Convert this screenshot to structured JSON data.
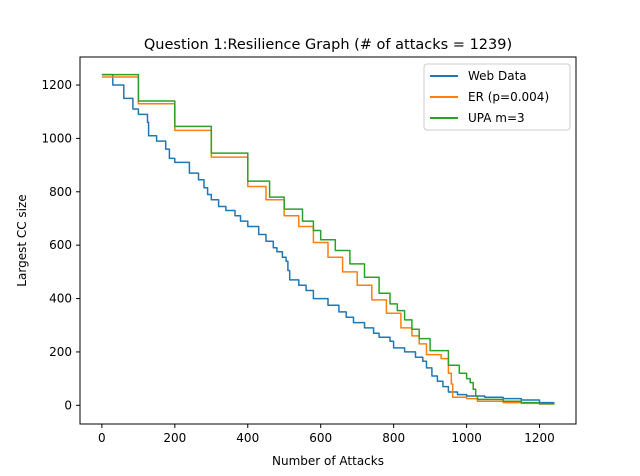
{
  "chart_data": {
    "type": "line",
    "title": "Question 1:Resilience Graph (# of attacks = 1239)",
    "xlabel": "Number of Attacks",
    "ylabel": "Largest CC size",
    "xlim": [
      -60,
      1300
    ],
    "ylim": [
      -70,
      1305
    ],
    "xticks": [
      0,
      200,
      400,
      600,
      800,
      1000,
      1200
    ],
    "yticks": [
      0,
      200,
      400,
      600,
      800,
      1000,
      1200
    ],
    "grid": false,
    "legend_position": "top-right",
    "series": [
      {
        "name": "Web Data",
        "color": "#1f77b4",
        "step": true,
        "points": [
          [
            0,
            1239
          ],
          [
            30,
            1200
          ],
          [
            60,
            1150
          ],
          [
            85,
            1110
          ],
          [
            100,
            1090
          ],
          [
            125,
            1060
          ],
          [
            128,
            1010
          ],
          [
            150,
            990
          ],
          [
            175,
            960
          ],
          [
            185,
            925
          ],
          [
            200,
            910
          ],
          [
            240,
            870
          ],
          [
            265,
            845
          ],
          [
            280,
            815
          ],
          [
            290,
            790
          ],
          [
            300,
            770
          ],
          [
            320,
            745
          ],
          [
            340,
            730
          ],
          [
            365,
            710
          ],
          [
            380,
            690
          ],
          [
            400,
            670
          ],
          [
            430,
            640
          ],
          [
            450,
            615
          ],
          [
            470,
            590
          ],
          [
            480,
            575
          ],
          [
            495,
            555
          ],
          [
            505,
            540
          ],
          [
            510,
            505
          ],
          [
            515,
            470
          ],
          [
            540,
            450
          ],
          [
            560,
            430
          ],
          [
            580,
            400
          ],
          [
            620,
            375
          ],
          [
            650,
            350
          ],
          [
            670,
            330
          ],
          [
            690,
            310
          ],
          [
            720,
            290
          ],
          [
            745,
            270
          ],
          [
            760,
            255
          ],
          [
            790,
            240
          ],
          [
            800,
            215
          ],
          [
            830,
            200
          ],
          [
            860,
            180
          ],
          [
            880,
            165
          ],
          [
            890,
            140
          ],
          [
            905,
            110
          ],
          [
            920,
            90
          ],
          [
            935,
            70
          ],
          [
            950,
            50
          ],
          [
            975,
            40
          ],
          [
            1000,
            35
          ],
          [
            1050,
            30
          ],
          [
            1100,
            25
          ],
          [
            1150,
            20
          ],
          [
            1200,
            10
          ],
          [
            1239,
            3
          ]
        ]
      },
      {
        "name": "ER (p=0.004)",
        "color": "#ff7f0e",
        "step": true,
        "points": [
          [
            0,
            1230
          ],
          [
            100,
            1130
          ],
          [
            200,
            1030
          ],
          [
            300,
            930
          ],
          [
            400,
            820
          ],
          [
            450,
            770
          ],
          [
            500,
            710
          ],
          [
            540,
            670
          ],
          [
            580,
            610
          ],
          [
            620,
            555
          ],
          [
            660,
            500
          ],
          [
            700,
            450
          ],
          [
            740,
            395
          ],
          [
            780,
            345
          ],
          [
            820,
            290
          ],
          [
            850,
            260
          ],
          [
            870,
            230
          ],
          [
            890,
            190
          ],
          [
            930,
            175
          ],
          [
            950,
            120
          ],
          [
            958,
            80
          ],
          [
            962,
            30
          ],
          [
            1000,
            25
          ],
          [
            1030,
            15
          ],
          [
            1100,
            10
          ],
          [
            1150,
            7
          ],
          [
            1200,
            5
          ],
          [
            1239,
            2
          ]
        ]
      },
      {
        "name": "UPA m=3",
        "color": "#2ca02c",
        "step": true,
        "points": [
          [
            0,
            1239
          ],
          [
            100,
            1140
          ],
          [
            200,
            1045
          ],
          [
            300,
            945
          ],
          [
            400,
            840
          ],
          [
            460,
            780
          ],
          [
            500,
            735
          ],
          [
            550,
            690
          ],
          [
            580,
            655
          ],
          [
            600,
            620
          ],
          [
            640,
            580
          ],
          [
            680,
            530
          ],
          [
            720,
            480
          ],
          [
            760,
            420
          ],
          [
            790,
            380
          ],
          [
            810,
            355
          ],
          [
            830,
            320
          ],
          [
            850,
            285
          ],
          [
            870,
            250
          ],
          [
            900,
            205
          ],
          [
            950,
            150
          ],
          [
            980,
            120
          ],
          [
            1000,
            100
          ],
          [
            1010,
            85
          ],
          [
            1018,
            60
          ],
          [
            1025,
            35
          ],
          [
            1030,
            22
          ],
          [
            1100,
            15
          ],
          [
            1150,
            10
          ],
          [
            1200,
            6
          ],
          [
            1239,
            3
          ]
        ]
      }
    ]
  }
}
